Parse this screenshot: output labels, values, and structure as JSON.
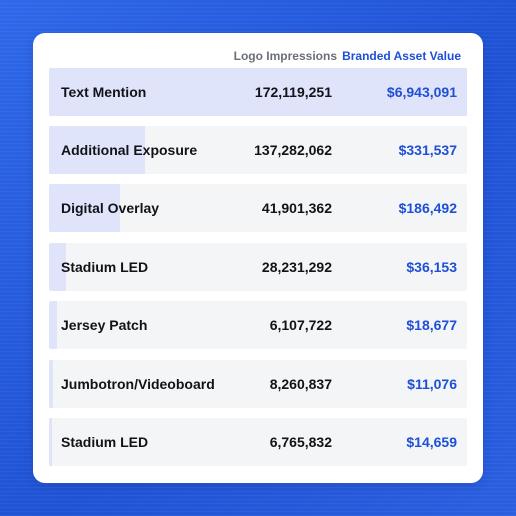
{
  "header": {
    "impressions_label": "Logo Impressions",
    "value_label": "Branded Asset Value"
  },
  "colors": {
    "accent_blue": "#1e4fd6",
    "bar_fill": "#dfe4fa",
    "row_bg": "#f4f5f7",
    "background": "#2a5fe0"
  },
  "rows": [
    {
      "name": "Text Mention",
      "impressions": "172,119,251",
      "value": "$6,943,091",
      "share": 1.0
    },
    {
      "name": "Additional Exposure",
      "impressions": "137,282,062",
      "value": "$331,537",
      "share": 0.23
    },
    {
      "name": "Digital Overlay",
      "impressions": "41,901,362",
      "value": "$186,492",
      "share": 0.17
    },
    {
      "name": "Stadium LED",
      "impressions": "28,231,292",
      "value": "$36,153",
      "share": 0.04
    },
    {
      "name": "Jersey Patch",
      "impressions": "6,107,722",
      "value": "$18,677",
      "share": 0.02
    },
    {
      "name": "Jumbotron/Videoboard",
      "impressions": "8,260,837",
      "value": "$11,076",
      "share": 0.01
    },
    {
      "name": "Stadium LED",
      "impressions": "6,765,832",
      "value": "$14,659",
      "share": 0.005
    }
  ]
}
